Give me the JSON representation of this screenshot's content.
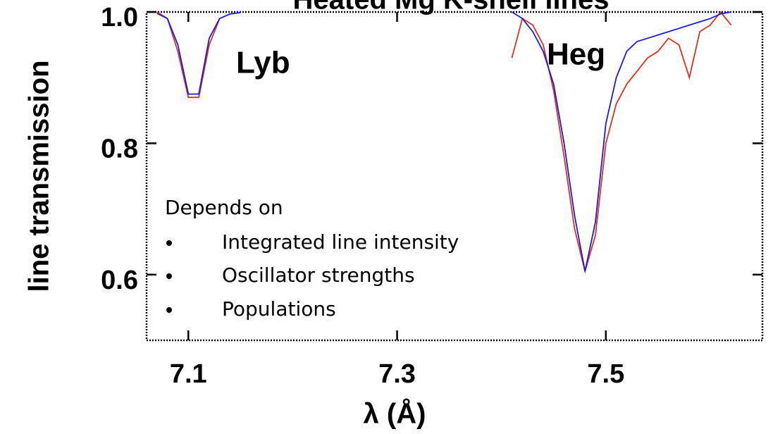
{
  "chart_data": {
    "type": "line",
    "title": "Heated Mg K-shell lines",
    "xlabel": "λ (Å)",
    "ylabel": "line transmission",
    "x": [
      7.07,
      7.08,
      7.09,
      7.1,
      7.11,
      7.12,
      7.13,
      7.14,
      7.15,
      7.3,
      7.41,
      7.42,
      7.43,
      7.44,
      7.45,
      7.46,
      7.47,
      7.48,
      7.49,
      7.5,
      7.51,
      7.52,
      7.53,
      7.54,
      7.55,
      7.56,
      7.57,
      7.58,
      7.59,
      7.6,
      7.61,
      7.62
    ],
    "series": [
      {
        "color": "#e0301e",
        "values": [
          1.0,
          0.99,
          0.94,
          0.87,
          0.87,
          0.95,
          0.99,
          null,
          null,
          null,
          0.93,
          0.99,
          0.98,
          0.95,
          0.88,
          0.78,
          0.67,
          0.605,
          0.66,
          0.8,
          0.86,
          0.89,
          0.91,
          0.93,
          0.94,
          0.96,
          0.95,
          0.9,
          0.97,
          0.98,
          1.0,
          0.98
        ]
      },
      {
        "color": "#1a1ae0",
        "values": [
          0.998,
          0.99,
          0.95,
          0.875,
          0.875,
          0.96,
          0.99,
          0.997,
          0.999,
          null,
          1.0,
          0.99,
          0.97,
          0.94,
          0.89,
          0.8,
          0.69,
          0.605,
          0.68,
          0.83,
          0.9,
          0.94,
          0.955,
          0.96,
          0.965,
          0.97,
          0.975,
          0.98,
          0.985,
          0.99,
          0.997,
          1.0
        ]
      }
    ],
    "xlim": [
      7.06,
      7.65
    ],
    "ylim": [
      0.5,
      1.0
    ],
    "xticks": [
      7.1,
      7.3,
      7.5
    ],
    "yticks": [
      0.6,
      0.8,
      {
        "value": 1,
        "label": "1.0"
      }
    ],
    "annotations": [
      "Lyb",
      "Heg",
      "Depends on",
      "Integrated line intensity",
      "Oscillator strengths",
      "Populations"
    ]
  }
}
